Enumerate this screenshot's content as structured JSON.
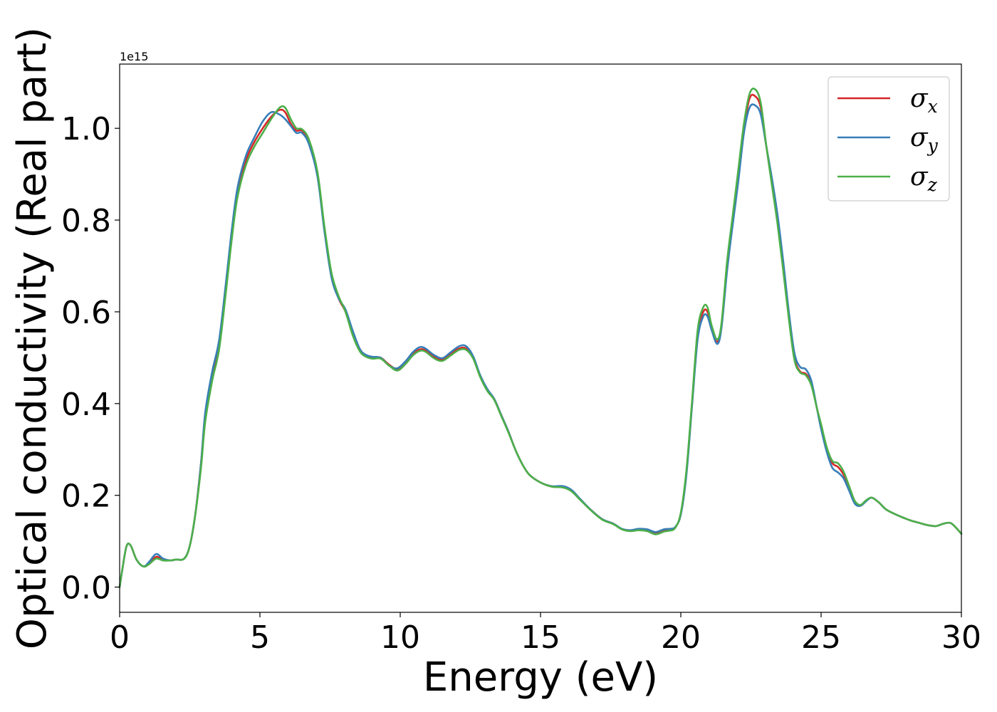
{
  "chart_data": {
    "type": "line",
    "xlabel": "Energy (eV)",
    "ylabel": "Optical conductivity (Real part)",
    "y_offset_label": "1e15",
    "xlim": [
      0,
      30
    ],
    "ylim": [
      -0.055,
      1.14
    ],
    "x_ticks": [
      0,
      5,
      10,
      15,
      20,
      25,
      30
    ],
    "x_tick_labels": [
      "0",
      "5",
      "10",
      "15",
      "20",
      "25",
      "30"
    ],
    "y_ticks": [
      0.0,
      0.2,
      0.4,
      0.6,
      0.8,
      1.0
    ],
    "y_tick_labels": [
      "0.0",
      "0.2",
      "0.4",
      "0.6",
      "0.8",
      "1.0"
    ],
    "grid": false,
    "legend_position": "top-right",
    "x": [
      0,
      0.1,
      0.25,
      0.4,
      0.6,
      0.85,
      1.05,
      1.3,
      1.55,
      1.8,
      2.0,
      2.3,
      2.5,
      2.7,
      2.9,
      3.05,
      3.3,
      3.55,
      3.8,
      4.0,
      4.2,
      4.5,
      4.8,
      5.1,
      5.4,
      5.7,
      5.9,
      6.1,
      6.3,
      6.5,
      6.75,
      7.05,
      7.3,
      7.55,
      7.8,
      8.05,
      8.3,
      8.55,
      8.75,
      9.0,
      9.3,
      9.6,
      9.9,
      10.2,
      10.45,
      10.7,
      10.9,
      11.2,
      11.5,
      11.8,
      12.1,
      12.35,
      12.6,
      12.85,
      13.1,
      13.35,
      13.6,
      13.85,
      14.1,
      14.35,
      14.6,
      15.0,
      15.4,
      15.8,
      16.1,
      16.4,
      16.8,
      17.2,
      17.6,
      17.9,
      18.2,
      18.5,
      18.8,
      19.1,
      19.4,
      19.6,
      19.8,
      20.0,
      20.2,
      20.4,
      20.6,
      20.8,
      20.95,
      21.1,
      21.3,
      21.45,
      21.65,
      21.85,
      22.05,
      22.25,
      22.45,
      22.65,
      22.85,
      23.05,
      23.25,
      23.45,
      23.65,
      23.85,
      24.05,
      24.25,
      24.45,
      24.65,
      24.85,
      25.0,
      25.2,
      25.4,
      25.6,
      25.8,
      26.0,
      26.2,
      26.4,
      26.6,
      26.8,
      27.05,
      27.3,
      27.6,
      27.9,
      28.2,
      28.5,
      28.8,
      29.1,
      29.35,
      29.6,
      29.8,
      30.0
    ],
    "series": [
      {
        "name": "σx",
        "color": "#d62728",
        "values": [
          0.0,
          0.04,
          0.09,
          0.09,
          0.06,
          0.045,
          0.052,
          0.066,
          0.06,
          0.058,
          0.06,
          0.062,
          0.09,
          0.16,
          0.27,
          0.37,
          0.46,
          0.53,
          0.66,
          0.77,
          0.86,
          0.93,
          0.97,
          1.0,
          1.025,
          1.04,
          1.035,
          1.01,
          0.995,
          0.995,
          0.97,
          0.9,
          0.78,
          0.68,
          0.63,
          0.6,
          0.555,
          0.52,
          0.505,
          0.5,
          0.5,
          0.485,
          0.475,
          0.49,
          0.508,
          0.518,
          0.516,
          0.502,
          0.496,
          0.508,
          0.52,
          0.52,
          0.5,
          0.46,
          0.43,
          0.41,
          0.375,
          0.34,
          0.3,
          0.268,
          0.245,
          0.228,
          0.219,
          0.218,
          0.21,
          0.192,
          0.168,
          0.148,
          0.138,
          0.126,
          0.123,
          0.125,
          0.123,
          0.118,
          0.123,
          0.125,
          0.13,
          0.16,
          0.25,
          0.4,
          0.55,
          0.6,
          0.6,
          0.565,
          0.535,
          0.57,
          0.7,
          0.8,
          0.9,
          1.0,
          1.065,
          1.07,
          1.045,
          0.96,
          0.88,
          0.8,
          0.7,
          0.59,
          0.5,
          0.47,
          0.465,
          0.445,
          0.39,
          0.35,
          0.3,
          0.27,
          0.262,
          0.245,
          0.215,
          0.185,
          0.178,
          0.188,
          0.195,
          0.185,
          0.17,
          0.16,
          0.152,
          0.145,
          0.14,
          0.135,
          0.133,
          0.138,
          0.14,
          0.13,
          0.116
        ]
      },
      {
        "name": "σy",
        "color": "#377eb8",
        "values": [
          0.0,
          0.04,
          0.09,
          0.09,
          0.06,
          0.045,
          0.055,
          0.072,
          0.062,
          0.058,
          0.06,
          0.062,
          0.09,
          0.16,
          0.27,
          0.38,
          0.47,
          0.54,
          0.67,
          0.78,
          0.87,
          0.94,
          0.98,
          1.015,
          1.035,
          1.03,
          1.02,
          1.005,
          0.99,
          0.99,
          0.965,
          0.895,
          0.775,
          0.675,
          0.63,
          0.605,
          0.56,
          0.52,
          0.507,
          0.502,
          0.5,
          0.483,
          0.477,
          0.493,
          0.512,
          0.523,
          0.52,
          0.506,
          0.499,
          0.512,
          0.525,
          0.525,
          0.503,
          0.462,
          0.432,
          0.41,
          0.375,
          0.34,
          0.3,
          0.268,
          0.245,
          0.228,
          0.22,
          0.22,
          0.212,
          0.193,
          0.168,
          0.148,
          0.138,
          0.127,
          0.124,
          0.127,
          0.126,
          0.12,
          0.126,
          0.127,
          0.131,
          0.158,
          0.245,
          0.395,
          0.54,
          0.59,
          0.59,
          0.56,
          0.53,
          0.565,
          0.69,
          0.79,
          0.885,
          0.99,
          1.045,
          1.05,
          1.03,
          0.96,
          0.89,
          0.81,
          0.71,
          0.6,
          0.51,
          0.48,
          0.475,
          0.45,
          0.39,
          0.345,
          0.295,
          0.26,
          0.25,
          0.237,
          0.21,
          0.182,
          0.177,
          0.187,
          0.195,
          0.185,
          0.17,
          0.16,
          0.152,
          0.145,
          0.14,
          0.135,
          0.133,
          0.138,
          0.14,
          0.13,
          0.116
        ]
      },
      {
        "name": "σz",
        "color": "#4daf4a",
        "values": [
          0.0,
          0.04,
          0.09,
          0.09,
          0.06,
          0.045,
          0.05,
          0.062,
          0.058,
          0.058,
          0.06,
          0.062,
          0.09,
          0.16,
          0.26,
          0.36,
          0.45,
          0.52,
          0.65,
          0.76,
          0.85,
          0.92,
          0.96,
          0.99,
          1.02,
          1.045,
          1.045,
          1.02,
          1.0,
          0.998,
          0.975,
          0.905,
          0.785,
          0.685,
          0.635,
          0.6,
          0.55,
          0.515,
          0.503,
          0.498,
          0.498,
          0.483,
          0.472,
          0.487,
          0.505,
          0.515,
          0.513,
          0.499,
          0.493,
          0.505,
          0.517,
          0.517,
          0.498,
          0.458,
          0.428,
          0.408,
          0.373,
          0.338,
          0.3,
          0.268,
          0.245,
          0.228,
          0.219,
          0.217,
          0.209,
          0.191,
          0.167,
          0.147,
          0.137,
          0.126,
          0.122,
          0.124,
          0.122,
          0.115,
          0.121,
          0.123,
          0.129,
          0.162,
          0.255,
          0.405,
          0.56,
          0.61,
          0.61,
          0.57,
          0.54,
          0.575,
          0.71,
          0.81,
          0.91,
          1.01,
          1.075,
          1.085,
          1.055,
          0.96,
          0.875,
          0.79,
          0.69,
          0.585,
          0.495,
          0.468,
          0.462,
          0.44,
          0.39,
          0.355,
          0.305,
          0.275,
          0.27,
          0.252,
          0.22,
          0.188,
          0.179,
          0.189,
          0.195,
          0.185,
          0.17,
          0.16,
          0.152,
          0.145,
          0.14,
          0.135,
          0.133,
          0.138,
          0.14,
          0.13,
          0.116
        ]
      }
    ]
  }
}
